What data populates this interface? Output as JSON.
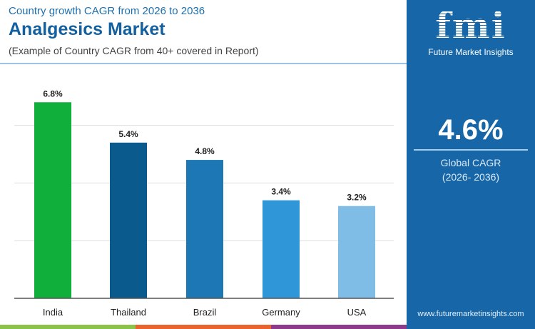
{
  "header": {
    "subtitle": "Country growth CAGR from 2026 to 2036",
    "title": "Analgesics Market",
    "note": "(Example of Country CAGR from 40+ covered in Report)"
  },
  "panel": {
    "logo_text": "fmi",
    "logo_name": "Future Market Insights",
    "global_value": "4.6%",
    "global_label": "Global CAGR",
    "global_period": "(2026- 2036)",
    "url": "www.futuremarketinsights.com",
    "color": "#1666a8"
  },
  "chart_data": {
    "type": "bar",
    "categories": [
      "India",
      "Thailand",
      "Brazil",
      "Germany",
      "USA"
    ],
    "values": [
      6.8,
      5.4,
      4.8,
      3.4,
      3.2
    ],
    "labels": [
      "6.8%",
      "5.4%",
      "4.8%",
      "3.4%",
      "3.2%"
    ],
    "colors": [
      "#10ae3a",
      "#0b5a8d",
      "#1c77b4",
      "#2f97d8",
      "#80bde6"
    ],
    "ylim": [
      0,
      8
    ],
    "grid": true,
    "unit": "%"
  },
  "footer_colors": [
    "#8bc34a",
    "#e8642c",
    "#8e3a8c"
  ]
}
